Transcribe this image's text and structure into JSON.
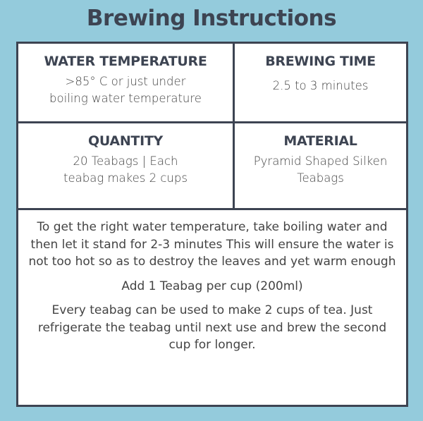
{
  "title": "Brewing Instructions",
  "cells": [
    {
      "heading": "WATER TEMPERATURE",
      "text": ">85° C or just under boiling water temperature"
    },
    {
      "heading": "BREWING TIME",
      "text": "2.5 to 3 minutes"
    },
    {
      "heading": "QUANTITY",
      "text": "20 Teabags | Each teabag makes 2 cups"
    },
    {
      "heading": "MATERIAL",
      "text": "Pyramid Shaped Silken Teabags"
    }
  ],
  "notes": [
    "To get the right water temperature, take boiling water and then let it stand for 2-3 minutes This will ensure the water is not too hot so as to destroy the leaves and yet warm enough",
    "Add 1 Teabag per cup (200ml)",
    "Every teabag can be used to make 2 cups of tea. Just refrigerate the teabag until next use and brew the second cup for longer."
  ]
}
